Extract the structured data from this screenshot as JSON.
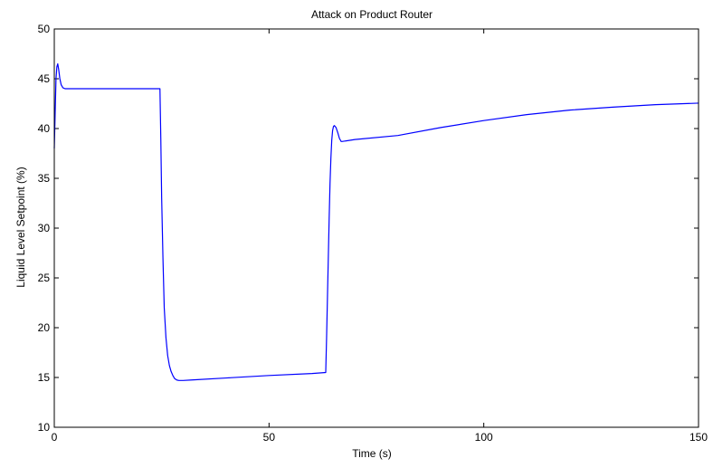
{
  "chart_data": {
    "type": "line",
    "title": "Attack on Product Router",
    "xlabel": "Time (s)",
    "ylabel": "Liquid Level Setpoint (%)",
    "xlim": [
      0,
      150
    ],
    "ylim": [
      10,
      50
    ],
    "xticks": [
      0,
      50,
      100,
      150
    ],
    "yticks": [
      10,
      15,
      20,
      25,
      30,
      35,
      40,
      45,
      50
    ],
    "grid": false,
    "legend": "none",
    "line_color": "#0000ff",
    "series": [
      {
        "x": [
          0,
          0.2,
          0.4,
          0.6,
          0.8,
          1.0,
          1.3,
          1.6,
          2.0,
          2.5,
          3,
          10,
          20,
          24.6,
          24.8,
          25.0,
          25.3,
          25.6,
          26.0,
          26.4,
          26.8,
          27.2,
          27.6,
          28.0,
          28.5,
          29.0,
          29.5,
          30,
          32,
          40,
          50,
          60,
          63.2,
          63.4,
          63.6,
          63.8,
          64.0,
          64.2,
          64.4,
          64.6,
          64.8,
          65.0,
          65.2,
          65.6,
          66.0,
          66.4,
          66.8,
          67.0,
          70,
          80,
          90,
          100,
          110,
          120,
          130,
          140,
          150
        ],
        "y": [
          38,
          41.5,
          45,
          46.2,
          46.5,
          46.0,
          45.0,
          44.4,
          44.1,
          44.0,
          44.0,
          44.0,
          44.0,
          44.0,
          39.0,
          33.0,
          27.0,
          22.0,
          19.0,
          17.2,
          16.2,
          15.6,
          15.2,
          14.9,
          14.75,
          14.7,
          14.7,
          14.7,
          14.75,
          14.95,
          15.2,
          15.4,
          15.5,
          19.0,
          23.0,
          27.0,
          31.0,
          34.5,
          37.0,
          38.8,
          39.8,
          40.2,
          40.3,
          40.1,
          39.6,
          39.0,
          38.7,
          38.7,
          38.9,
          39.3,
          40.1,
          40.8,
          41.4,
          41.85,
          42.15,
          42.4,
          42.55
        ]
      }
    ]
  }
}
